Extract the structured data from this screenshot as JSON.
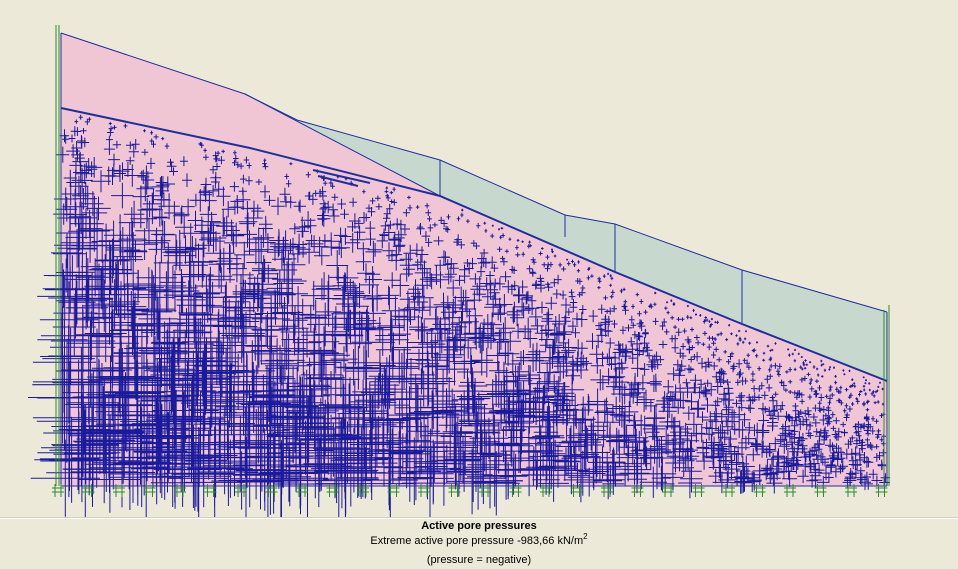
{
  "legend": {
    "title": "Active pore pressures",
    "extreme_label": "Extreme active pore pressure",
    "extreme_value": "-983,66",
    "unit_base": "kN/m",
    "unit_exponent": "2",
    "note": "(pressure = negative)"
  },
  "colors": {
    "background": "#ECE9D8",
    "soil_fill": "#F0C6D4",
    "upper_layer_fill": "#C7D9CF",
    "outline": "#1F2F9C",
    "cross": "#1A1A9C",
    "fixity": "#2E8B2E"
  }
}
